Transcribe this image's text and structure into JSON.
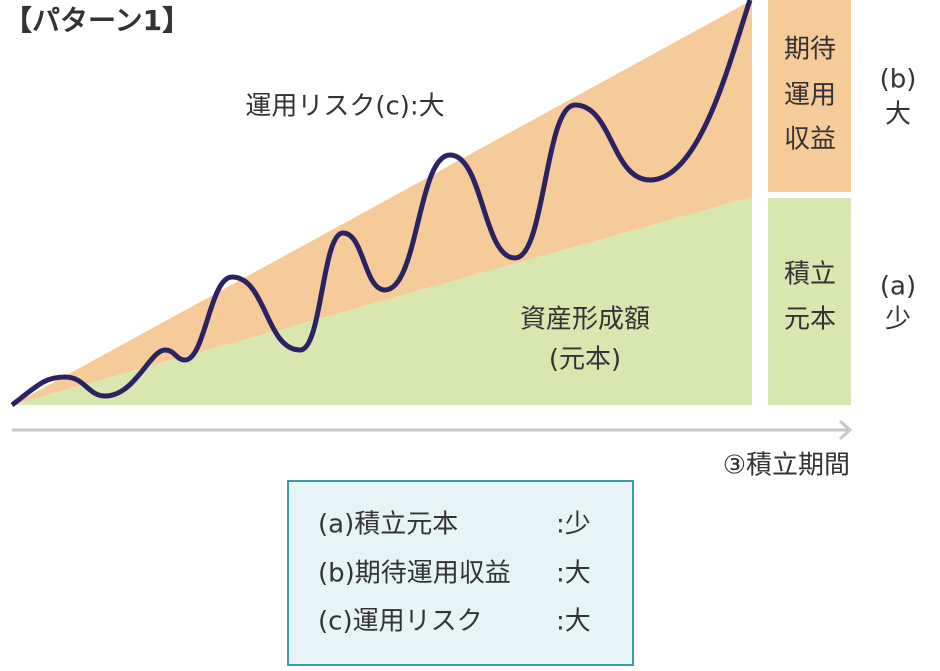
{
  "title": "【パターン1】",
  "diagram": {
    "risk_label": "運用リスク(c):大",
    "asset_label": [
      "資産形成額",
      "(元本)"
    ],
    "return_bar": [
      "期待",
      "運用",
      "収益"
    ],
    "principal_bar": [
      "積立",
      "元本"
    ],
    "return_side": [
      "(b)",
      "大"
    ],
    "principal_side": [
      "(a)",
      "少"
    ],
    "axis_label": "③積立期間"
  },
  "legend": {
    "rows": [
      {
        "label": "(a)積立元本",
        "value": ":少"
      },
      {
        "label": "(b)期待運用収益",
        "value": ":大"
      },
      {
        "label": "(c)運用リスク",
        "value": ":大"
      }
    ]
  }
}
